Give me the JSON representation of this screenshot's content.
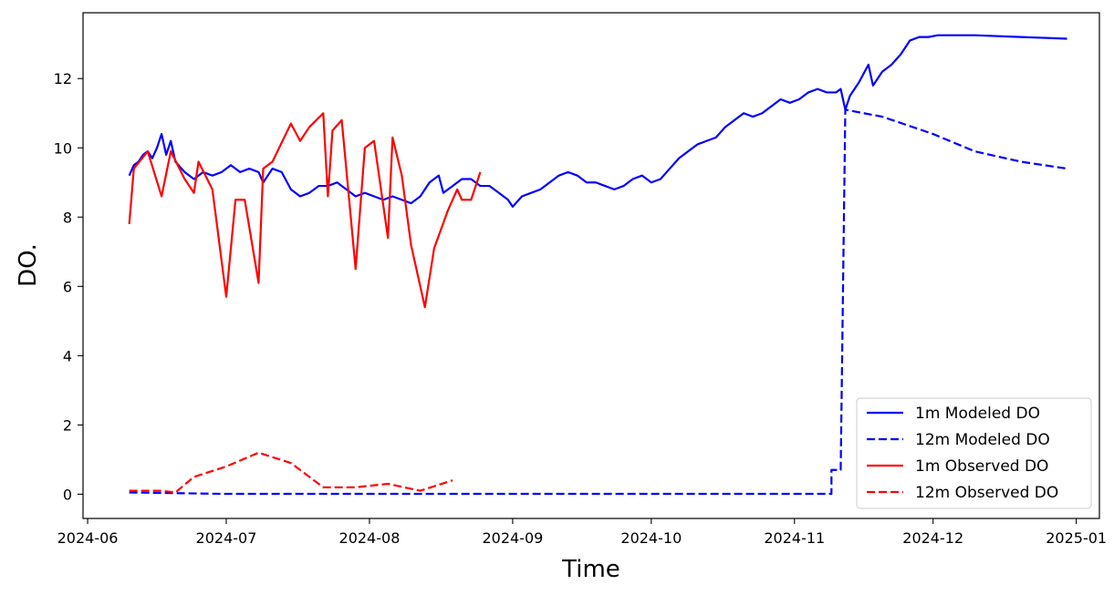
{
  "chart_data": {
    "type": "line",
    "title": "",
    "xlabel": "Time",
    "ylabel": "DO.",
    "x_ticks": [
      "2024-06",
      "2024-07",
      "2024-08",
      "2024-09",
      "2024-10",
      "2024-11",
      "2024-12",
      "2025-01"
    ],
    "y_ticks": [
      "0",
      "2",
      "4",
      "6",
      "8",
      "10",
      "12"
    ],
    "xlim": [
      "2024-05-31",
      "2025-01-06"
    ],
    "ylim": [
      -0.7,
      13.9
    ],
    "grid": false,
    "legend_position": "lower right",
    "series": [
      {
        "name": "1m Modeled DO",
        "color": "#0000ff",
        "dash": "solid",
        "points": [
          [
            "2024-06-10",
            9.2
          ],
          [
            "2024-06-11",
            9.5
          ],
          [
            "2024-06-12",
            9.6
          ],
          [
            "2024-06-13",
            9.8
          ],
          [
            "2024-06-14",
            9.9
          ],
          [
            "2024-06-15",
            9.7
          ],
          [
            "2024-06-16",
            10.0
          ],
          [
            "2024-06-17",
            10.4
          ],
          [
            "2024-06-18",
            9.8
          ],
          [
            "2024-06-19",
            10.2
          ],
          [
            "2024-06-20",
            9.6
          ],
          [
            "2024-06-22",
            9.3
          ],
          [
            "2024-06-24",
            9.1
          ],
          [
            "2024-06-26",
            9.3
          ],
          [
            "2024-06-28",
            9.2
          ],
          [
            "2024-06-30",
            9.3
          ],
          [
            "2024-07-02",
            9.5
          ],
          [
            "2024-07-04",
            9.3
          ],
          [
            "2024-07-06",
            9.4
          ],
          [
            "2024-07-08",
            9.3
          ],
          [
            "2024-07-09",
            9.0
          ],
          [
            "2024-07-11",
            9.4
          ],
          [
            "2024-07-13",
            9.3
          ],
          [
            "2024-07-15",
            8.8
          ],
          [
            "2024-07-17",
            8.6
          ],
          [
            "2024-07-19",
            8.7
          ],
          [
            "2024-07-21",
            8.9
          ],
          [
            "2024-07-23",
            8.9
          ],
          [
            "2024-07-25",
            9.0
          ],
          [
            "2024-07-27",
            8.8
          ],
          [
            "2024-07-29",
            8.6
          ],
          [
            "2024-07-31",
            8.7
          ],
          [
            "2024-08-02",
            8.6
          ],
          [
            "2024-08-04",
            8.5
          ],
          [
            "2024-08-06",
            8.6
          ],
          [
            "2024-08-08",
            8.5
          ],
          [
            "2024-08-10",
            8.4
          ],
          [
            "2024-08-12",
            8.6
          ],
          [
            "2024-08-14",
            9.0
          ],
          [
            "2024-08-16",
            9.2
          ],
          [
            "2024-08-17",
            8.7
          ],
          [
            "2024-08-19",
            8.9
          ],
          [
            "2024-08-21",
            9.1
          ],
          [
            "2024-08-23",
            9.1
          ],
          [
            "2024-08-25",
            8.9
          ],
          [
            "2024-08-27",
            8.9
          ],
          [
            "2024-08-29",
            8.7
          ],
          [
            "2024-08-31",
            8.5
          ],
          [
            "2024-09-01",
            8.3
          ],
          [
            "2024-09-03",
            8.6
          ],
          [
            "2024-09-05",
            8.7
          ],
          [
            "2024-09-07",
            8.8
          ],
          [
            "2024-09-09",
            9.0
          ],
          [
            "2024-09-11",
            9.2
          ],
          [
            "2024-09-13",
            9.3
          ],
          [
            "2024-09-15",
            9.2
          ],
          [
            "2024-09-17",
            9.0
          ],
          [
            "2024-09-19",
            9.0
          ],
          [
            "2024-09-21",
            8.9
          ],
          [
            "2024-09-23",
            8.8
          ],
          [
            "2024-09-25",
            8.9
          ],
          [
            "2024-09-27",
            9.1
          ],
          [
            "2024-09-29",
            9.2
          ],
          [
            "2024-10-01",
            9.0
          ],
          [
            "2024-10-03",
            9.1
          ],
          [
            "2024-10-05",
            9.4
          ],
          [
            "2024-10-07",
            9.7
          ],
          [
            "2024-10-09",
            9.9
          ],
          [
            "2024-10-11",
            10.1
          ],
          [
            "2024-10-13",
            10.2
          ],
          [
            "2024-10-15",
            10.3
          ],
          [
            "2024-10-17",
            10.6
          ],
          [
            "2024-10-19",
            10.8
          ],
          [
            "2024-10-21",
            11.0
          ],
          [
            "2024-10-23",
            10.9
          ],
          [
            "2024-10-25",
            11.0
          ],
          [
            "2024-10-27",
            11.2
          ],
          [
            "2024-10-29",
            11.4
          ],
          [
            "2024-10-31",
            11.3
          ],
          [
            "2024-11-02",
            11.4
          ],
          [
            "2024-11-04",
            11.6
          ],
          [
            "2024-11-06",
            11.7
          ],
          [
            "2024-11-08",
            11.6
          ],
          [
            "2024-11-10",
            11.6
          ],
          [
            "2024-11-11",
            11.7
          ],
          [
            "2024-11-12",
            11.1
          ],
          [
            "2024-11-13",
            11.5
          ],
          [
            "2024-11-15",
            11.9
          ],
          [
            "2024-11-17",
            12.4
          ],
          [
            "2024-11-18",
            11.8
          ],
          [
            "2024-11-20",
            12.2
          ],
          [
            "2024-11-22",
            12.4
          ],
          [
            "2024-11-24",
            12.7
          ],
          [
            "2024-11-26",
            13.1
          ],
          [
            "2024-11-28",
            13.2
          ],
          [
            "2024-11-30",
            13.2
          ],
          [
            "2024-12-02",
            13.25
          ],
          [
            "2024-12-05",
            13.25
          ],
          [
            "2024-12-10",
            13.25
          ],
          [
            "2024-12-20",
            13.2
          ],
          [
            "2024-12-30",
            13.15
          ]
        ]
      },
      {
        "name": "12m Modeled DO",
        "color": "#0000ff",
        "dash": "dashed",
        "points": [
          [
            "2024-06-10",
            0.05
          ],
          [
            "2024-06-20",
            0.03
          ],
          [
            "2024-07-01",
            0.01
          ],
          [
            "2024-11-09",
            0.01
          ],
          [
            "2024-11-09",
            0.7
          ],
          [
            "2024-11-10",
            0.7
          ],
          [
            "2024-11-11",
            0.7
          ],
          [
            "2024-11-12",
            11.1
          ],
          [
            "2024-11-20",
            10.9
          ],
          [
            "2024-12-01",
            10.4
          ],
          [
            "2024-12-10",
            9.9
          ],
          [
            "2024-12-20",
            9.6
          ],
          [
            "2024-12-30",
            9.4
          ]
        ]
      },
      {
        "name": "1m Observed DO",
        "color": "#ff0000",
        "dash": "solid",
        "points": [
          [
            "2024-06-10",
            7.8
          ],
          [
            "2024-06-11",
            9.4
          ],
          [
            "2024-06-14",
            9.9
          ],
          [
            "2024-06-17",
            8.6
          ],
          [
            "2024-06-19",
            9.9
          ],
          [
            "2024-06-22",
            9.1
          ],
          [
            "2024-06-24",
            8.7
          ],
          [
            "2024-06-25",
            9.6
          ],
          [
            "2024-06-28",
            8.8
          ],
          [
            "2024-07-01",
            5.7
          ],
          [
            "2024-07-03",
            8.5
          ],
          [
            "2024-07-05",
            8.5
          ],
          [
            "2024-07-08",
            6.1
          ],
          [
            "2024-07-09",
            9.4
          ],
          [
            "2024-07-11",
            9.6
          ],
          [
            "2024-07-15",
            10.7
          ],
          [
            "2024-07-17",
            10.2
          ],
          [
            "2024-07-19",
            10.6
          ],
          [
            "2024-07-22",
            11.0
          ],
          [
            "2024-07-23",
            8.6
          ],
          [
            "2024-07-24",
            10.5
          ],
          [
            "2024-07-26",
            10.8
          ],
          [
            "2024-07-29",
            6.5
          ],
          [
            "2024-07-31",
            10.0
          ],
          [
            "2024-08-02",
            10.2
          ],
          [
            "2024-08-05",
            7.4
          ],
          [
            "2024-08-06",
            10.3
          ],
          [
            "2024-08-08",
            9.2
          ],
          [
            "2024-08-10",
            7.2
          ],
          [
            "2024-08-13",
            5.4
          ],
          [
            "2024-08-15",
            7.1
          ],
          [
            "2024-08-18",
            8.2
          ],
          [
            "2024-08-20",
            8.8
          ],
          [
            "2024-08-21",
            8.5
          ],
          [
            "2024-08-23",
            8.5
          ],
          [
            "2024-08-25",
            9.3
          ]
        ]
      },
      {
        "name": "12m Observed DO",
        "color": "#ff0000",
        "dash": "dashed",
        "points": [
          [
            "2024-06-10",
            0.1
          ],
          [
            "2024-06-17",
            0.1
          ],
          [
            "2024-06-20",
            0.05
          ],
          [
            "2024-06-24",
            0.5
          ],
          [
            "2024-07-01",
            0.8
          ],
          [
            "2024-07-08",
            1.2
          ],
          [
            "2024-07-15",
            0.9
          ],
          [
            "2024-07-22",
            0.2
          ],
          [
            "2024-07-29",
            0.2
          ],
          [
            "2024-08-05",
            0.3
          ],
          [
            "2024-08-12",
            0.1
          ],
          [
            "2024-08-19",
            0.4
          ]
        ]
      }
    ]
  },
  "legend": {
    "items": [
      {
        "label": "1m Modeled DO",
        "color": "#0000ff",
        "dash": "solid"
      },
      {
        "label": "12m Modeled DO",
        "color": "#0000ff",
        "dash": "dashed"
      },
      {
        "label": "1m Observed DO",
        "color": "#ff0000",
        "dash": "solid"
      },
      {
        "label": "12m Observed DO",
        "color": "#ff0000",
        "dash": "dashed"
      }
    ]
  }
}
